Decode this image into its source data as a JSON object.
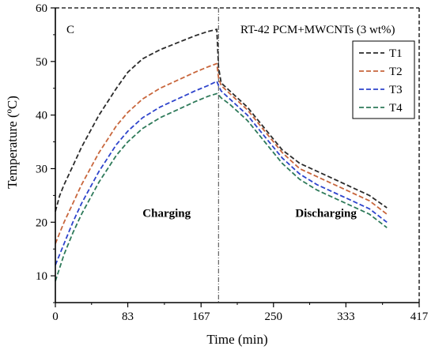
{
  "chart_data": {
    "type": "line",
    "panel_label": "C",
    "title": "RT-42 PCM+MWCNTs (3 wt%)",
    "xlabel": "Time (min)",
    "ylabel": "Temperature (ºC)",
    "xlim": [
      0,
      417
    ],
    "ylim": [
      5,
      60
    ],
    "xticks": [
      "0",
      "83",
      "167",
      "250",
      "333",
      "417"
    ],
    "xtick_values": [
      0,
      83,
      167,
      250,
      333,
      417
    ],
    "yticks": [
      "10",
      "20",
      "30",
      "40",
      "50",
      "60"
    ],
    "ytick_values": [
      10,
      20,
      30,
      40,
      50,
      60
    ],
    "phase_divider_x": 187,
    "phase_labels": [
      {
        "text": "Charging",
        "x": 100,
        "y": 21
      },
      {
        "text": "Discharging",
        "x": 275,
        "y": 21
      }
    ],
    "legend_position": "top-right",
    "series": [
      {
        "name": "T1",
        "color": "#2b2b2b",
        "x": [
          0,
          5,
          10,
          20,
          30,
          40,
          50,
          60,
          70,
          83,
          100,
          120,
          140,
          160,
          175,
          185,
          187,
          190,
          200,
          220,
          240,
          260,
          280,
          300,
          320,
          340,
          360,
          380
        ],
        "y": [
          22,
          25,
          27,
          30.5,
          34,
          37,
          40,
          42.5,
          45,
          48,
          50.5,
          52.2,
          53.5,
          54.8,
          55.6,
          56,
          49,
          46,
          44.5,
          41.5,
          37.5,
          33.5,
          31,
          29.5,
          28,
          26.5,
          25,
          22.7
        ]
      },
      {
        "name": "T2",
        "color": "#c8663c",
        "x": [
          0,
          5,
          10,
          20,
          30,
          40,
          50,
          60,
          70,
          83,
          100,
          120,
          140,
          160,
          175,
          185,
          187,
          190,
          200,
          220,
          240,
          260,
          280,
          300,
          320,
          340,
          360,
          380
        ],
        "y": [
          16,
          18,
          20,
          23.5,
          27,
          30,
          33,
          35.5,
          38,
          40.5,
          43,
          45,
          46.5,
          48,
          49,
          49.6,
          47,
          45.5,
          44,
          41,
          37,
          33,
          30,
          28.5,
          27,
          25.5,
          24,
          21.5
        ]
      },
      {
        "name": "T3",
        "color": "#2e44cc",
        "x": [
          0,
          5,
          10,
          20,
          30,
          40,
          50,
          60,
          70,
          83,
          100,
          120,
          140,
          160,
          175,
          185,
          187,
          190,
          200,
          220,
          240,
          260,
          280,
          300,
          320,
          340,
          360,
          380
        ],
        "y": [
          12,
          14,
          16,
          20,
          23.5,
          26.5,
          29.5,
          32,
          34.5,
          37,
          39.5,
          41.5,
          43,
          44.5,
          45.5,
          46.3,
          45.5,
          44.5,
          43,
          40,
          36,
          32,
          29,
          27,
          25.5,
          24,
          22.5,
          20
        ]
      },
      {
        "name": "T4",
        "color": "#2e7a5a",
        "x": [
          0,
          5,
          10,
          20,
          30,
          40,
          50,
          60,
          70,
          83,
          100,
          120,
          140,
          160,
          175,
          185,
          187,
          190,
          200,
          220,
          240,
          260,
          280,
          300,
          320,
          340,
          360,
          380
        ],
        "y": [
          9,
          11.5,
          14,
          18,
          21.5,
          24.5,
          27.5,
          30,
          32.5,
          35,
          37.5,
          39.5,
          41,
          42.5,
          43.5,
          44,
          43.8,
          43.2,
          42,
          39,
          35,
          31,
          28,
          26,
          24.5,
          23,
          21.5,
          19
        ]
      }
    ]
  }
}
